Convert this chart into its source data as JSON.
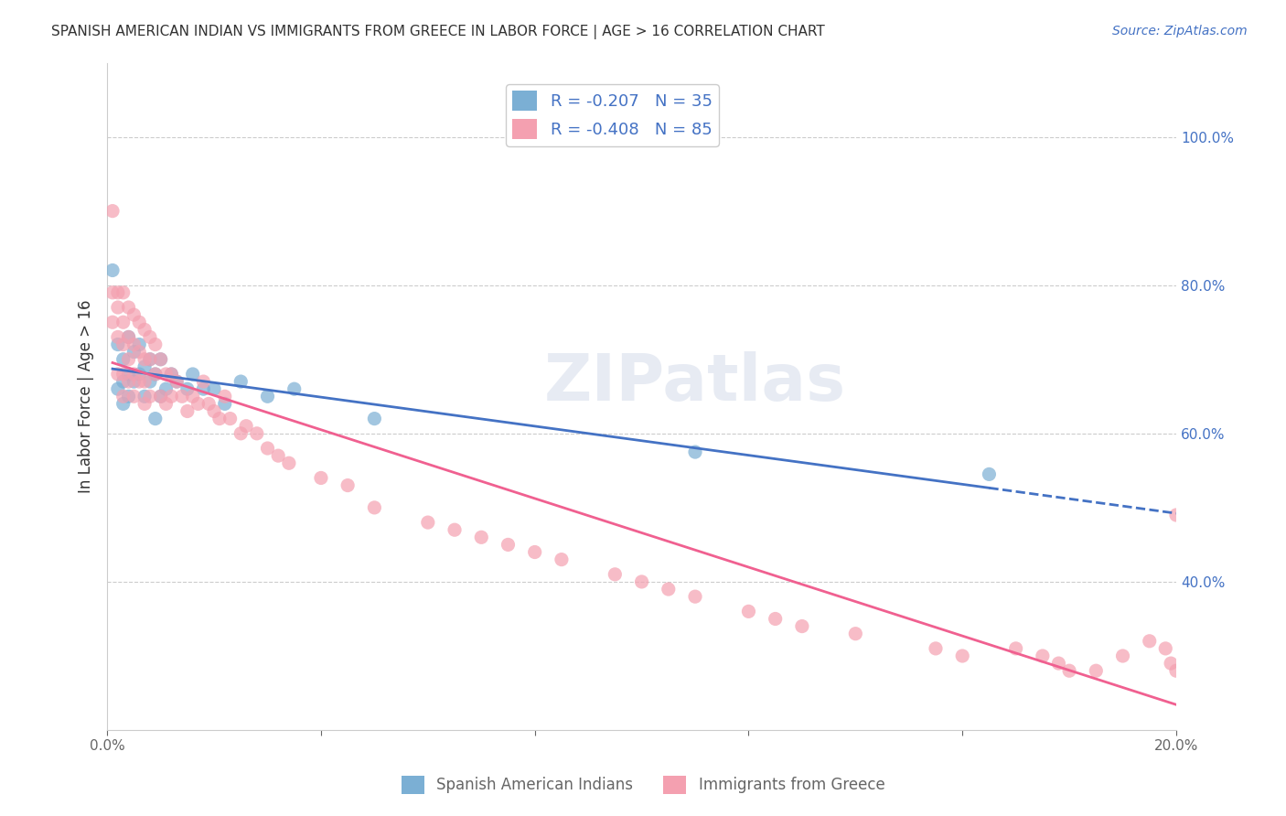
{
  "title": "SPANISH AMERICAN INDIAN VS IMMIGRANTS FROM GREECE IN LABOR FORCE | AGE > 16 CORRELATION CHART",
  "source": "Source: ZipAtlas.com",
  "ylabel": "In Labor Force | Age > 16",
  "xlabel_right": "",
  "legend_entry1": "R = -0.207   N = 35",
  "legend_entry2": "R = -0.408   N = 85",
  "R1": -0.207,
  "N1": 35,
  "R2": -0.408,
  "N2": 85,
  "color_blue": "#7bafd4",
  "color_pink": "#f4a0b0",
  "color_blue_line": "#4472c4",
  "color_pink_line": "#f06090",
  "watermark": "ZIPatlas",
  "xlim": [
    0.0,
    0.2
  ],
  "ylim": [
    0.2,
    1.1
  ],
  "yticks_right": [
    0.4,
    0.6,
    0.8,
    1.0
  ],
  "ytick_right_labels": [
    "40.0%",
    "60.0%",
    "80.0%",
    "100.0%"
  ],
  "xticks": [
    0.0,
    0.04,
    0.08,
    0.12,
    0.16,
    0.2
  ],
  "xtick_labels": [
    "0.0%",
    "",
    "",
    "",
    "",
    "20.0%"
  ],
  "blue_scatter_x": [
    0.001,
    0.002,
    0.002,
    0.003,
    0.003,
    0.003,
    0.004,
    0.004,
    0.004,
    0.005,
    0.005,
    0.006,
    0.006,
    0.007,
    0.007,
    0.008,
    0.008,
    0.009,
    0.009,
    0.01,
    0.01,
    0.011,
    0.012,
    0.013,
    0.015,
    0.016,
    0.018,
    0.02,
    0.022,
    0.025,
    0.03,
    0.035,
    0.05,
    0.11,
    0.165
  ],
  "blue_scatter_y": [
    0.82,
    0.72,
    0.66,
    0.7,
    0.67,
    0.64,
    0.73,
    0.68,
    0.65,
    0.71,
    0.67,
    0.72,
    0.68,
    0.69,
    0.65,
    0.7,
    0.67,
    0.68,
    0.62,
    0.7,
    0.65,
    0.66,
    0.68,
    0.67,
    0.66,
    0.68,
    0.66,
    0.66,
    0.64,
    0.67,
    0.65,
    0.66,
    0.62,
    0.575,
    0.545
  ],
  "pink_scatter_x": [
    0.001,
    0.001,
    0.001,
    0.002,
    0.002,
    0.002,
    0.002,
    0.003,
    0.003,
    0.003,
    0.003,
    0.003,
    0.004,
    0.004,
    0.004,
    0.004,
    0.005,
    0.005,
    0.005,
    0.005,
    0.006,
    0.006,
    0.006,
    0.007,
    0.007,
    0.007,
    0.007,
    0.008,
    0.008,
    0.008,
    0.009,
    0.009,
    0.01,
    0.01,
    0.011,
    0.011,
    0.012,
    0.012,
    0.013,
    0.014,
    0.015,
    0.016,
    0.017,
    0.018,
    0.019,
    0.02,
    0.021,
    0.022,
    0.023,
    0.025,
    0.026,
    0.028,
    0.03,
    0.032,
    0.034,
    0.04,
    0.045,
    0.05,
    0.06,
    0.065,
    0.07,
    0.075,
    0.08,
    0.085,
    0.095,
    0.1,
    0.105,
    0.11,
    0.12,
    0.125,
    0.13,
    0.14,
    0.155,
    0.16,
    0.17,
    0.175,
    0.178,
    0.18,
    0.185,
    0.19,
    0.195,
    0.198,
    0.199,
    0.2,
    0.2
  ],
  "pink_scatter_y": [
    0.9,
    0.79,
    0.75,
    0.79,
    0.77,
    0.73,
    0.68,
    0.79,
    0.75,
    0.72,
    0.68,
    0.65,
    0.77,
    0.73,
    0.7,
    0.67,
    0.76,
    0.72,
    0.68,
    0.65,
    0.75,
    0.71,
    0.67,
    0.74,
    0.7,
    0.67,
    0.64,
    0.73,
    0.7,
    0.65,
    0.72,
    0.68,
    0.7,
    0.65,
    0.68,
    0.64,
    0.68,
    0.65,
    0.67,
    0.65,
    0.63,
    0.65,
    0.64,
    0.67,
    0.64,
    0.63,
    0.62,
    0.65,
    0.62,
    0.6,
    0.61,
    0.6,
    0.58,
    0.57,
    0.56,
    0.54,
    0.53,
    0.5,
    0.48,
    0.47,
    0.46,
    0.45,
    0.44,
    0.43,
    0.41,
    0.4,
    0.39,
    0.38,
    0.36,
    0.35,
    0.34,
    0.33,
    0.31,
    0.3,
    0.31,
    0.3,
    0.29,
    0.28,
    0.28,
    0.3,
    0.32,
    0.31,
    0.29,
    0.28,
    0.49
  ]
}
